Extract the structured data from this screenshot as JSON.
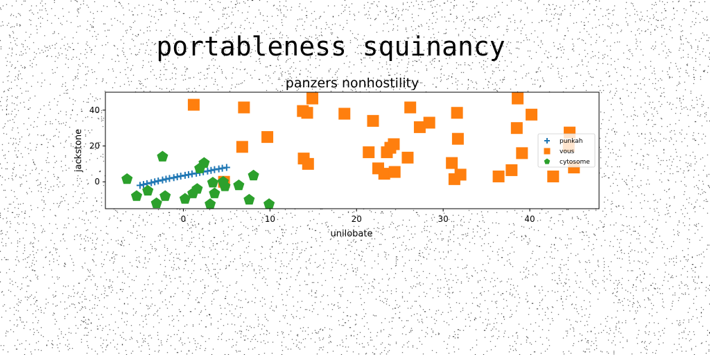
{
  "chart_data": {
    "type": "scatter",
    "suptitle": "portableness squinancy",
    "title": "panzers nonhostility",
    "xlabel": "unilobate",
    "ylabel": "jackstone",
    "xlim": [
      -9,
      48
    ],
    "ylim": [
      -15,
      50
    ],
    "xticks": [
      0,
      10,
      20,
      30,
      40
    ],
    "yticks": [
      0,
      20,
      40
    ],
    "grid": false,
    "legend_position": "center-right",
    "series": [
      {
        "name": "punkah",
        "marker": "plus",
        "color": "#1f77b4",
        "points": [
          [
            -5,
            -2
          ],
          [
            -4.6,
            -1.5
          ],
          [
            -4.2,
            -1
          ],
          [
            -3.7,
            -0.5
          ],
          [
            -3.3,
            0
          ],
          [
            -2.9,
            0.5
          ],
          [
            -2.4,
            1
          ],
          [
            -2,
            1.5
          ],
          [
            -1.6,
            1.9
          ],
          [
            -1.1,
            2.3
          ],
          [
            -0.7,
            2.8
          ],
          [
            -0.3,
            3.2
          ],
          [
            0.2,
            3.6
          ],
          [
            0.6,
            4
          ],
          [
            1,
            4.4
          ],
          [
            1.5,
            4.8
          ],
          [
            1.9,
            5.2
          ],
          [
            2.3,
            5.6
          ],
          [
            2.8,
            6
          ],
          [
            3.2,
            6.4
          ],
          [
            3.6,
            6.8
          ],
          [
            4.1,
            7.2
          ],
          [
            4.5,
            7.6
          ],
          [
            5,
            8
          ]
        ]
      },
      {
        "name": "vous",
        "marker": "square",
        "color": "#ff7f0e",
        "points": [
          [
            1.2,
            43
          ],
          [
            7,
            41.5
          ],
          [
            14.9,
            46.5
          ],
          [
            13.8,
            39.5
          ],
          [
            14.3,
            38.5
          ],
          [
            18.6,
            38
          ],
          [
            21.9,
            34
          ],
          [
            26.2,
            41.5
          ],
          [
            27.3,
            30.5
          ],
          [
            28.4,
            33
          ],
          [
            31.6,
            38.5
          ],
          [
            31.7,
            24
          ],
          [
            38.6,
            46.5
          ],
          [
            38.5,
            30
          ],
          [
            40.2,
            37.5
          ],
          [
            6.8,
            19.5
          ],
          [
            9.7,
            25
          ],
          [
            13.9,
            13
          ],
          [
            14.4,
            10
          ],
          [
            21.4,
            16.5
          ],
          [
            22.5,
            7.5
          ],
          [
            23.2,
            4.5
          ],
          [
            23.5,
            16.5
          ],
          [
            23.9,
            19
          ],
          [
            24.3,
            21
          ],
          [
            24.4,
            5.5
          ],
          [
            25.9,
            13.5
          ],
          [
            31,
            10.5
          ],
          [
            31.3,
            1.5
          ],
          [
            32,
            4
          ],
          [
            36.4,
            3
          ],
          [
            37.9,
            6.5
          ],
          [
            39.1,
            16
          ],
          [
            42.7,
            3
          ],
          [
            44.6,
            27.5
          ],
          [
            44.5,
            20
          ],
          [
            45.1,
            8
          ],
          [
            4.7,
            0
          ]
        ]
      },
      {
        "name": "cytosome",
        "marker": "pentagon",
        "color": "#2ca02c",
        "points": [
          [
            -6.5,
            1.5
          ],
          [
            -5.4,
            -8
          ],
          [
            -4.1,
            -5
          ],
          [
            -3.1,
            -12
          ],
          [
            -2.4,
            14
          ],
          [
            -2.1,
            -8
          ],
          [
            0.2,
            -9.5
          ],
          [
            1.1,
            -6.5
          ],
          [
            1.6,
            -4
          ],
          [
            1.9,
            7.5
          ],
          [
            2.4,
            10.5
          ],
          [
            3.1,
            -12.5
          ],
          [
            3.4,
            -0.5
          ],
          [
            3.6,
            -6.5
          ],
          [
            4.6,
            0
          ],
          [
            4.8,
            -2.5
          ],
          [
            6.4,
            -2
          ],
          [
            7.6,
            -10
          ],
          [
            8.1,
            3.5
          ],
          [
            9.9,
            -12.5
          ]
        ]
      }
    ]
  }
}
